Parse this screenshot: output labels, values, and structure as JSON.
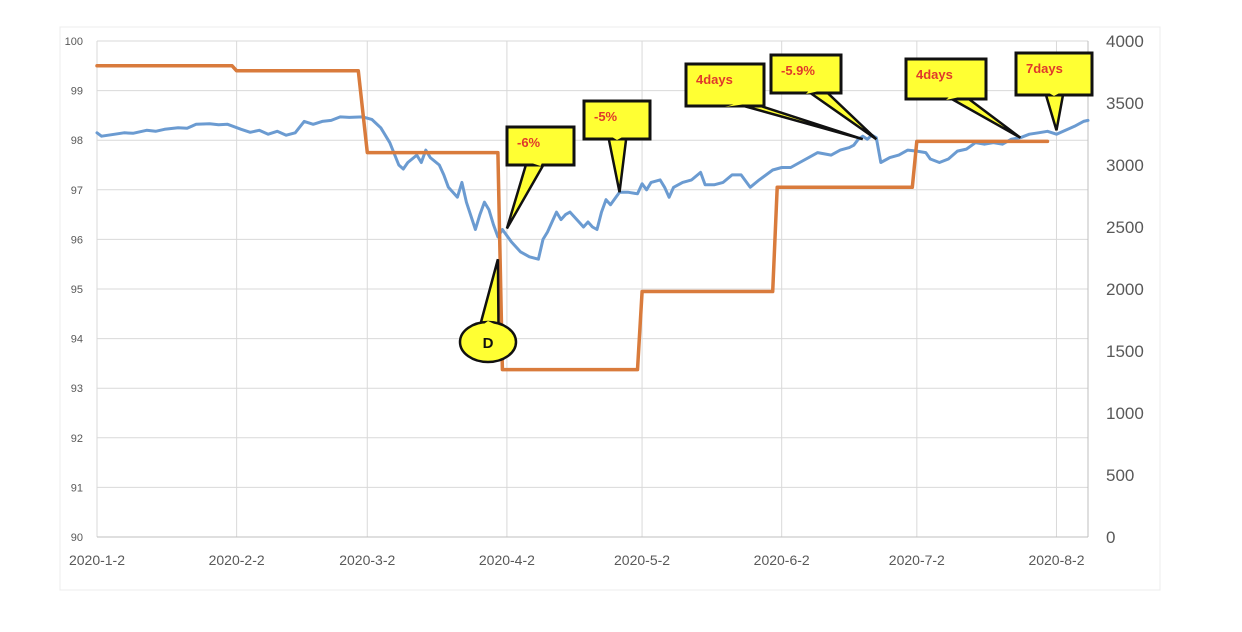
{
  "chart_data": {
    "type": "line",
    "x_axis": {
      "type": "date",
      "range": [
        "2020-01-02",
        "2020-08-09"
      ],
      "tick_labels": [
        "2020-1-2",
        "2020-2-2",
        "2020-3-2",
        "2020-4-2",
        "2020-5-2",
        "2020-6-2",
        "2020-7-2",
        "2020-8-2"
      ],
      "tick_dates": [
        "2020-01-02",
        "2020-02-02",
        "2020-03-02",
        "2020-04-02",
        "2020-05-02",
        "2020-06-02",
        "2020-07-02",
        "2020-08-02"
      ]
    },
    "y_left": {
      "range": [
        90,
        100
      ],
      "tick_labels": [
        "90",
        "91",
        "92",
        "93",
        "94",
        "95",
        "96",
        "97",
        "98",
        "99",
        "100"
      ]
    },
    "y_right": {
      "range": [
        0,
        4000
      ],
      "tick_labels": [
        "0",
        "500",
        "1000",
        "1500",
        "2000",
        "2500",
        "3000",
        "3500",
        "4000"
      ]
    },
    "grid": true,
    "legend": "none",
    "series": [
      {
        "axis": "left",
        "color": "#6b9bd1",
        "points": [
          [
            "2020-01-02",
            98.15
          ],
          [
            "2020-01-03",
            98.08
          ],
          [
            "2020-01-06",
            98.12
          ],
          [
            "2020-01-08",
            98.15
          ],
          [
            "2020-01-10",
            98.14
          ],
          [
            "2020-01-13",
            98.2
          ],
          [
            "2020-01-15",
            98.18
          ],
          [
            "2020-01-17",
            98.22
          ],
          [
            "2020-01-20",
            98.25
          ],
          [
            "2020-01-22",
            98.24
          ],
          [
            "2020-01-24",
            98.32
          ],
          [
            "2020-01-27",
            98.33
          ],
          [
            "2020-01-29",
            98.31
          ],
          [
            "2020-01-31",
            98.32
          ],
          [
            "2020-02-03",
            98.22
          ],
          [
            "2020-02-05",
            98.16
          ],
          [
            "2020-02-07",
            98.2
          ],
          [
            "2020-02-09",
            98.12
          ],
          [
            "2020-02-11",
            98.18
          ],
          [
            "2020-02-13",
            98.1
          ],
          [
            "2020-02-15",
            98.15
          ],
          [
            "2020-02-17",
            98.38
          ],
          [
            "2020-02-19",
            98.32
          ],
          [
            "2020-02-21",
            98.38
          ],
          [
            "2020-02-23",
            98.4
          ],
          [
            "2020-02-25",
            98.47
          ],
          [
            "2020-02-27",
            98.46
          ],
          [
            "2020-03-01",
            98.47
          ],
          [
            "2020-03-03",
            98.42
          ],
          [
            "2020-03-05",
            98.25
          ],
          [
            "2020-03-07",
            97.95
          ],
          [
            "2020-03-09",
            97.5
          ],
          [
            "2020-03-10",
            97.42
          ],
          [
            "2020-03-11",
            97.55
          ],
          [
            "2020-03-13",
            97.7
          ],
          [
            "2020-03-14",
            97.55
          ],
          [
            "2020-03-15",
            97.8
          ],
          [
            "2020-03-16",
            97.65
          ],
          [
            "2020-03-18",
            97.5
          ],
          [
            "2020-03-19",
            97.3
          ],
          [
            "2020-03-20",
            97.05
          ],
          [
            "2020-03-22",
            96.85
          ],
          [
            "2020-03-23",
            97.15
          ],
          [
            "2020-03-24",
            96.75
          ],
          [
            "2020-03-26",
            96.2
          ],
          [
            "2020-03-27",
            96.5
          ],
          [
            "2020-03-28",
            96.75
          ],
          [
            "2020-03-29",
            96.6
          ],
          [
            "2020-03-30",
            96.3
          ],
          [
            "2020-03-31",
            96.05
          ],
          [
            "2020-04-01",
            96.2
          ],
          [
            "2020-04-03",
            95.95
          ],
          [
            "2020-04-05",
            95.75
          ],
          [
            "2020-04-07",
            95.65
          ],
          [
            "2020-04-09",
            95.6
          ],
          [
            "2020-04-10",
            96.0
          ],
          [
            "2020-04-11",
            96.15
          ],
          [
            "2020-04-12",
            96.35
          ],
          [
            "2020-04-13",
            96.55
          ],
          [
            "2020-04-14",
            96.4
          ],
          [
            "2020-04-15",
            96.5
          ],
          [
            "2020-04-16",
            96.55
          ],
          [
            "2020-04-18",
            96.35
          ],
          [
            "2020-04-19",
            96.25
          ],
          [
            "2020-04-20",
            96.35
          ],
          [
            "2020-04-21",
            96.25
          ],
          [
            "2020-04-22",
            96.2
          ],
          [
            "2020-04-23",
            96.55
          ],
          [
            "2020-04-24",
            96.8
          ],
          [
            "2020-04-25",
            96.7
          ],
          [
            "2020-04-27",
            96.95
          ],
          [
            "2020-04-29",
            96.95
          ],
          [
            "2020-05-01",
            96.92
          ],
          [
            "2020-05-02",
            97.12
          ],
          [
            "2020-05-03",
            97.0
          ],
          [
            "2020-05-04",
            97.15
          ],
          [
            "2020-05-06",
            97.2
          ],
          [
            "2020-05-07",
            97.05
          ],
          [
            "2020-05-08",
            96.85
          ],
          [
            "2020-05-09",
            97.05
          ],
          [
            "2020-05-11",
            97.15
          ],
          [
            "2020-05-13",
            97.2
          ],
          [
            "2020-05-15",
            97.35
          ],
          [
            "2020-05-16",
            97.1
          ],
          [
            "2020-05-18",
            97.1
          ],
          [
            "2020-05-20",
            97.15
          ],
          [
            "2020-05-22",
            97.3
          ],
          [
            "2020-05-24",
            97.3
          ],
          [
            "2020-05-26",
            97.05
          ],
          [
            "2020-05-28",
            97.2
          ],
          [
            "2020-05-31",
            97.4
          ],
          [
            "2020-06-02",
            97.45
          ],
          [
            "2020-06-04",
            97.45
          ],
          [
            "2020-06-06",
            97.55
          ],
          [
            "2020-06-08",
            97.65
          ],
          [
            "2020-06-10",
            97.75
          ],
          [
            "2020-06-13",
            97.7
          ],
          [
            "2020-06-15",
            97.8
          ],
          [
            "2020-06-17",
            97.85
          ],
          [
            "2020-06-18",
            97.9
          ],
          [
            "2020-06-19",
            98.02
          ],
          [
            "2020-06-20",
            98.08
          ],
          [
            "2020-06-21",
            98.02
          ],
          [
            "2020-06-22",
            98.1
          ],
          [
            "2020-06-23",
            98.05
          ],
          [
            "2020-06-24",
            97.55
          ],
          [
            "2020-06-26",
            97.65
          ],
          [
            "2020-06-28",
            97.7
          ],
          [
            "2020-06-30",
            97.8
          ],
          [
            "2020-07-02",
            97.78
          ],
          [
            "2020-07-04",
            97.75
          ],
          [
            "2020-07-05",
            97.62
          ],
          [
            "2020-07-07",
            97.55
          ],
          [
            "2020-07-09",
            97.62
          ],
          [
            "2020-07-11",
            97.78
          ],
          [
            "2020-07-13",
            97.82
          ],
          [
            "2020-07-15",
            97.95
          ],
          [
            "2020-07-17",
            97.92
          ],
          [
            "2020-07-19",
            97.95
          ],
          [
            "2020-07-21",
            97.92
          ],
          [
            "2020-07-23",
            98.02
          ],
          [
            "2020-07-25",
            98.05
          ],
          [
            "2020-07-27",
            98.12
          ],
          [
            "2020-07-29",
            98.15
          ],
          [
            "2020-07-31",
            98.18
          ],
          [
            "2020-08-02",
            98.12
          ],
          [
            "2020-08-04",
            98.2
          ],
          [
            "2020-08-06",
            98.28
          ],
          [
            "2020-08-08",
            98.38
          ],
          [
            "2020-08-09",
            98.4
          ]
        ]
      },
      {
        "axis": "right",
        "color": "#d97b3c",
        "step": true,
        "points": [
          [
            "2020-01-02",
            3800
          ],
          [
            "2020-02-01",
            3800
          ],
          [
            "2020-02-02",
            3760
          ],
          [
            "2020-02-29",
            3760
          ],
          [
            "2020-03-02",
            3100
          ],
          [
            "2020-03-31",
            3100
          ],
          [
            "2020-04-01",
            1350
          ],
          [
            "2020-05-01",
            1350
          ],
          [
            "2020-05-02",
            1980
          ],
          [
            "2020-05-31",
            1980
          ],
          [
            "2020-06-01",
            2820
          ],
          [
            "2020-07-01",
            2820
          ],
          [
            "2020-07-02",
            3190
          ],
          [
            "2020-07-31",
            3190
          ]
        ]
      }
    ],
    "annotations": [
      {
        "text": "D",
        "point": [
          "2020-03-31",
          95.6
        ],
        "shape": "ellipse"
      },
      {
        "text": "-6%",
        "point": [
          "2020-04-02",
          96.22
        ],
        "shape": "rect"
      },
      {
        "text": "-5%",
        "point": [
          "2020-04-27",
          96.95
        ],
        "shape": "rect"
      },
      {
        "text": "4days",
        "point": [
          "2020-06-20",
          98.02
        ],
        "shape": "rect"
      },
      {
        "text": "-5.9%",
        "point": [
          "2020-06-23",
          98.02
        ],
        "shape": "rect"
      },
      {
        "text": "4days",
        "point": [
          "2020-07-25",
          98.05
        ],
        "shape": "rect"
      },
      {
        "text": "7days",
        "point": [
          "2020-08-02",
          98.2
        ],
        "shape": "rect"
      }
    ],
    "colors": {
      "callout_fill": "#ffff33",
      "callout_text": "#e0392b",
      "grid": "#d9d9d9"
    }
  }
}
